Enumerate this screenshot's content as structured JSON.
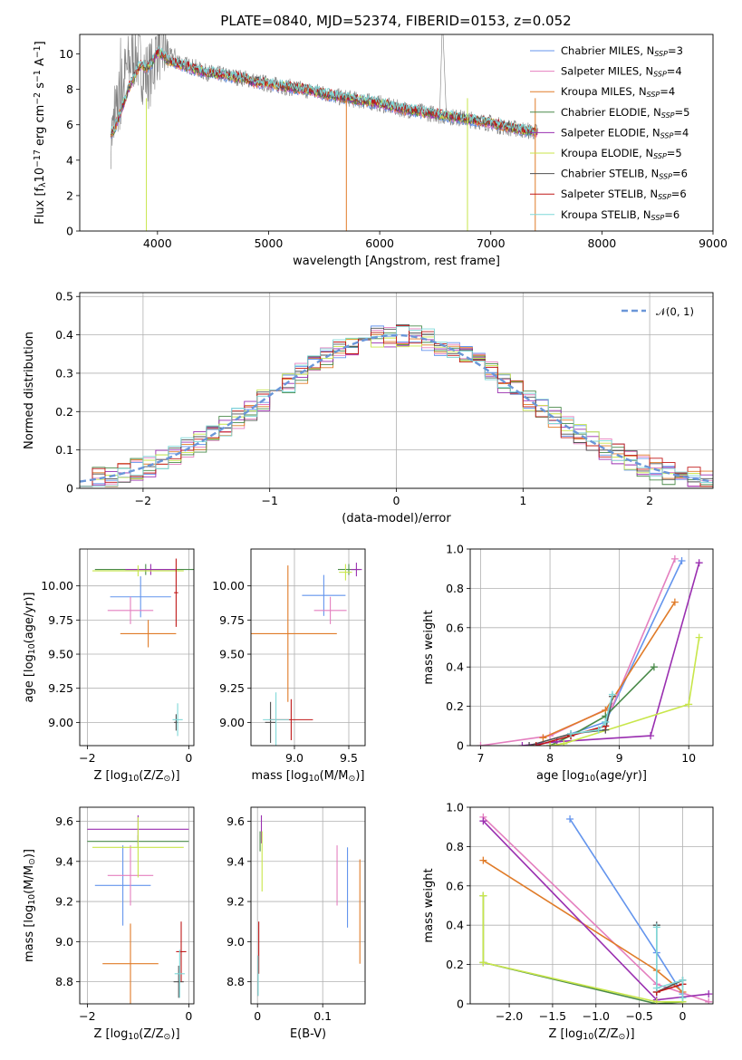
{
  "figure": {
    "title": "PLATE=0840, MJD=52374, FIBERID=0153, z=0.052"
  },
  "series": [
    {
      "name": "Chabrier MILES, N$_{SSP}$=3",
      "label_main": "Chabrier MILES, N",
      "label_sub": "SSP",
      "label_end": "=3",
      "color": "#6495ed"
    },
    {
      "name": "Salpeter MILES, N$_{SSP}$=4",
      "label_main": "Salpeter MILES, N",
      "label_sub": "SSP",
      "label_end": "=4",
      "color": "#e47fbf"
    },
    {
      "name": "Kroupa MILES, N$_{SSP}$=4",
      "label_main": "Kroupa MILES, N",
      "label_sub": "SSP",
      "label_end": "=4",
      "color": "#e07b28"
    },
    {
      "name": "Chabrier ELODIE, N$_{SSP}$=5",
      "label_main": "Chabrier ELODIE, N",
      "label_sub": "SSP",
      "label_end": "=5",
      "color": "#4a8a4a"
    },
    {
      "name": "Salpeter ELODIE, N$_{SSP}$=4",
      "label_main": "Salpeter ELODIE, N",
      "label_sub": "SSP",
      "label_end": "=4",
      "color": "#9a2fb0"
    },
    {
      "name": "Kroupa ELODIE, N$_{SSP}$=5",
      "label_main": "Kroupa ELODIE, N",
      "label_sub": "SSP",
      "label_end": "=5",
      "color": "#c8e64a"
    },
    {
      "name": "Chabrier STELIB, N$_{SSP}$=6",
      "label_main": "Chabrier STELIB, N",
      "label_sub": "SSP",
      "label_end": "=6",
      "color": "#505050"
    },
    {
      "name": "Salpeter STELIB, N$_{SSP}$=6",
      "label_main": "Salpeter STELIB, N",
      "label_sub": "SSP",
      "label_end": "=6",
      "color": "#c01818"
    },
    {
      "name": "Kroupa STELIB, N$_{SSP}$=6",
      "label_main": "Kroupa STELIB, N",
      "label_sub": "SSP",
      "label_end": "=6",
      "color": "#7fd8d8"
    }
  ],
  "chart_data": [
    {
      "id": "spectrum",
      "type": "line",
      "xlabel": "wavelength [Angstrom, rest frame]",
      "ylabel": "Flux [f$_\\lambda$10$^{-17}$ erg cm$^{-2}$ s$^{-1}$ A$^{-1}$]",
      "xlim": [
        3300,
        9000
      ],
      "ylim": [
        0,
        11.1
      ],
      "xticks": [
        4000,
        5000,
        6000,
        7000,
        8000,
        9000
      ],
      "yticks": [
        0,
        2,
        4,
        6,
        8,
        10
      ],
      "legend": "upper right",
      "data_color": "#808080",
      "data_x": [
        3600,
        3650,
        3700,
        3750,
        3800,
        3850,
        3900,
        3950,
        4000,
        4050,
        4100,
        4150,
        4200,
        4250,
        4300,
        4350,
        4400,
        4500,
        4600,
        4700,
        4800,
        4860,
        4900,
        5000,
        5100,
        5200,
        5300,
        5400,
        5500,
        5600,
        5700,
        5800,
        5900,
        6000,
        6100,
        6200,
        6300,
        6400,
        6500,
        6560,
        6600,
        6700,
        6800,
        6900,
        7000,
        7100,
        7200,
        7300,
        7400
      ],
      "data_y": [
        5.5,
        7.2,
        8.6,
        9.5,
        10.0,
        9.3,
        8.8,
        9.0,
        10.5,
        10.2,
        9.8,
        9.9,
        9.6,
        9.4,
        9.3,
        9.2,
        9.0,
        8.9,
        8.8,
        8.7,
        8.6,
        8.5,
        8.4,
        8.3,
        8.2,
        8.1,
        8.0,
        7.9,
        7.8,
        7.6,
        7.5,
        7.4,
        7.3,
        7.2,
        7.0,
        6.9,
        6.8,
        6.7,
        6.6,
        6.5,
        6.5,
        6.4,
        6.3,
        6.2,
        6.1,
        5.9,
        5.8,
        5.7,
        5.6
      ],
      "model_x": [
        3600,
        3650,
        3700,
        3750,
        3800,
        3850,
        3900,
        3950,
        4000,
        4050,
        4100,
        4200,
        4300,
        4400,
        4500,
        4600,
        4700,
        4800,
        4860,
        4900,
        5000,
        5200,
        5400,
        5600,
        5800,
        6000,
        6200,
        6400,
        6600,
        6800,
        7000,
        7200,
        7400
      ],
      "model_y": [
        5.6,
        6.4,
        7.3,
        8.2,
        8.9,
        9.4,
        9.2,
        9.5,
        10.1,
        9.9,
        9.6,
        9.4,
        9.2,
        9.0,
        8.9,
        8.8,
        8.7,
        8.6,
        8.4,
        8.4,
        8.3,
        8.1,
        7.9,
        7.6,
        7.4,
        7.2,
        6.9,
        6.7,
        6.5,
        6.3,
        6.1,
        5.8,
        5.6
      ]
    },
    {
      "id": "residuals",
      "type": "step",
      "xlabel": "(data-model)/error",
      "ylabel": "Normed distribution",
      "xlim": [
        -2.5,
        2.5
      ],
      "ylim": [
        0,
        0.51
      ],
      "xticks": [
        -2,
        -1,
        0,
        1,
        2
      ],
      "yticks": [
        0.0,
        0.1,
        0.2,
        0.3,
        0.4,
        0.5
      ],
      "legend": "upper right",
      "normal_label": "$\\mathcal{N}(0,1)$",
      "normal_label_display": "𝒩(0, 1)",
      "normal_color": "#6a96d8",
      "bin_width": 0.1,
      "bin_start": -2.5
    },
    {
      "id": "age-vs-Z",
      "type": "errorbar",
      "xlabel": "Z [log$_{10}$(Z/Z$_\\odot$)]",
      "ylabel": "age  [log$_{10}$(age/yr)]",
      "xlim": [
        -2.15,
        0.1
      ],
      "ylim": [
        8.83,
        10.27
      ],
      "xticks": [
        -2,
        0
      ],
      "yticks": [
        9.0,
        9.25,
        9.5,
        9.75,
        10.0
      ],
      "points": [
        {
          "s": 0,
          "x": -0.95,
          "xe": 0.6,
          "y": 9.92,
          "ye": 0.15
        },
        {
          "s": 1,
          "x": -1.15,
          "xe": 0.45,
          "y": 9.82,
          "ye": 0.1
        },
        {
          "s": 2,
          "x": -0.8,
          "xe": 0.55,
          "y": 9.65,
          "ye": 0.1
        },
        {
          "s": 3,
          "x": -0.85,
          "xe": 1.0,
          "y": 10.12,
          "ye": 0.04
        },
        {
          "s": 4,
          "x": -0.75,
          "xe": 0.5,
          "y": 10.12,
          "ye": 0.04
        },
        {
          "s": 5,
          "x": -1.0,
          "xe": 0.9,
          "y": 10.11,
          "ye": 0.04
        },
        {
          "s": 6,
          "x": -0.25,
          "xe": 0.04,
          "y": 9.0,
          "ye": 0.06
        },
        {
          "s": 7,
          "x": -0.25,
          "xe": 0.04,
          "y": 9.95,
          "ye": 0.25
        },
        {
          "s": 8,
          "x": -0.22,
          "xe": 0.1,
          "y": 9.02,
          "ye": 0.12
        }
      ]
    },
    {
      "id": "age-vs-mass",
      "type": "errorbar",
      "xlabel": "mass [log$_{10}$(M/M$_\\odot$)]",
      "ylabel": "",
      "xlim": [
        8.6,
        9.65
      ],
      "ylim": [
        8.83,
        10.27
      ],
      "xticks": [
        9.0,
        9.5
      ],
      "yticks": [
        9.0,
        9.25,
        9.5,
        9.75,
        10.0
      ],
      "points": [
        {
          "s": 0,
          "x": 9.27,
          "xe": 0.2,
          "y": 9.93,
          "ye": 0.15
        },
        {
          "s": 1,
          "x": 9.33,
          "xe": 0.15,
          "y": 9.82,
          "ye": 0.1
        },
        {
          "s": 2,
          "x": 8.94,
          "xe": 0.45,
          "y": 9.65,
          "ye": 0.5
        },
        {
          "s": 3,
          "x": 9.5,
          "xe": 0.1,
          "y": 10.12,
          "ye": 0.04
        },
        {
          "s": 4,
          "x": 9.57,
          "xe": 0.05,
          "y": 10.12,
          "ye": 0.05
        },
        {
          "s": 5,
          "x": 9.47,
          "xe": 0.06,
          "y": 10.1,
          "ye": 0.06
        },
        {
          "s": 6,
          "x": 8.78,
          "xe": 0.05,
          "y": 9.0,
          "ye": 0.15
        },
        {
          "s": 7,
          "x": 8.97,
          "xe": 0.2,
          "y": 9.02,
          "ye": 0.15
        },
        {
          "s": 8,
          "x": 8.83,
          "xe": 0.12,
          "y": 9.02,
          "ye": 0.2
        }
      ]
    },
    {
      "id": "massweight-vs-age",
      "type": "line",
      "xlabel": "age  [log$_{10}$(age/yr)]",
      "ylabel": "mass weight",
      "xlim": [
        6.85,
        10.35
      ],
      "ylim": [
        0,
        1.0
      ],
      "xticks": [
        7,
        8,
        9,
        10
      ],
      "yticks": [
        0.0,
        0.2,
        0.4,
        0.6,
        0.8,
        1.0
      ],
      "lines": [
        {
          "s": 0,
          "x": [
            8.3,
            8.8,
            9.9
          ],
          "y": [
            0.06,
            0.12,
            0.94
          ]
        },
        {
          "s": 1,
          "x": [
            7.0,
            8.0,
            8.9,
            9.8
          ],
          "y": [
            0.0,
            0.05,
            0.2,
            0.95
          ]
        },
        {
          "s": 2,
          "x": [
            7.9,
            8.8,
            9.8
          ],
          "y": [
            0.04,
            0.18,
            0.73
          ]
        },
        {
          "s": 3,
          "x": [
            8.0,
            8.3,
            8.8,
            9.5
          ],
          "y": [
            0.0,
            0.05,
            0.15,
            0.4
          ]
        },
        {
          "s": 4,
          "x": [
            7.6,
            8.1,
            9.45,
            10.15
          ],
          "y": [
            0.0,
            0.02,
            0.05,
            0.93
          ]
        },
        {
          "s": 5,
          "x": [
            8.0,
            8.2,
            10.0,
            10.15
          ],
          "y": [
            0.0,
            0.01,
            0.21,
            0.55
          ]
        },
        {
          "s": 6,
          "x": [
            7.7,
            8.3,
            8.8,
            8.9
          ],
          "y": [
            0.0,
            0.06,
            0.08,
            0.25
          ]
        },
        {
          "s": 7,
          "x": [
            7.8,
            8.3,
            8.8
          ],
          "y": [
            0.0,
            0.05,
            0.1
          ]
        },
        {
          "s": 8,
          "x": [
            8.3,
            8.7,
            8.8,
            8.9
          ],
          "y": [
            0.06,
            0.08,
            0.12,
            0.26
          ]
        }
      ]
    },
    {
      "id": "mass-vs-Z",
      "type": "errorbar",
      "xlabel": "Z [log$_{10}$(Z/Z$_\\odot$)]",
      "ylabel": "mass [log$_{10}$(M/M$_\\odot$)]",
      "xlim": [
        -2.15,
        0.1
      ],
      "ylim": [
        8.69,
        9.67
      ],
      "xticks": [
        -2,
        0
      ],
      "yticks": [
        8.8,
        9.0,
        9.2,
        9.4,
        9.6
      ],
      "points": [
        {
          "s": 0,
          "x": -1.3,
          "xe": 0.55,
          "y": 9.28,
          "ye": 0.2
        },
        {
          "s": 1,
          "x": -1.15,
          "xe": 0.45,
          "y": 9.33,
          "ye": 0.15
        },
        {
          "s": 2,
          "x": -1.15,
          "xe": 0.55,
          "y": 8.89,
          "ye": 0.2
        },
        {
          "s": 3,
          "x": -1.0,
          "xe": 1.0,
          "y": 9.5,
          "ye": 0.03
        },
        {
          "s": 4,
          "x": -1.0,
          "xe": 1.0,
          "y": 9.56,
          "ye": 0.07
        },
        {
          "s": 5,
          "x": -1.0,
          "xe": 0.9,
          "y": 9.47,
          "ye": 0.15
        },
        {
          "s": 6,
          "x": -0.2,
          "xe": 0.1,
          "y": 8.8,
          "ye": 0.08
        },
        {
          "s": 7,
          "x": -0.15,
          "xe": 0.1,
          "y": 8.95,
          "ye": 0.15
        },
        {
          "s": 8,
          "x": -0.18,
          "xe": 0.1,
          "y": 8.84,
          "ye": 0.12
        }
      ]
    },
    {
      "id": "mass-vs-EBV",
      "type": "errorbar",
      "xlabel": "E(B-V)",
      "ylabel": "",
      "xlim": [
        -0.01,
        0.165
      ],
      "ylim": [
        8.69,
        9.67
      ],
      "xticks": [
        0.0,
        0.1
      ],
      "yticks": [
        8.8,
        9.0,
        9.2,
        9.4,
        9.6
      ],
      "points": [
        {
          "s": 0,
          "x": 0.138,
          "xe": 0,
          "y": 9.27,
          "ye": 0.2
        },
        {
          "s": 1,
          "x": 0.122,
          "xe": 0,
          "y": 9.33,
          "ye": 0.15
        },
        {
          "s": 2,
          "x": 0.157,
          "xe": 0,
          "y": 9.15,
          "ye": 0.26
        },
        {
          "s": 3,
          "x": 0.004,
          "xe": 0,
          "y": 9.5,
          "ye": 0.05
        },
        {
          "s": 4,
          "x": 0.006,
          "xe": 0,
          "y": 9.56,
          "ye": 0.07
        },
        {
          "s": 5,
          "x": 0.007,
          "xe": 0,
          "y": 9.4,
          "ye": 0.15
        },
        {
          "s": 6,
          "x": 0.001,
          "xe": 0,
          "y": 8.83,
          "ye": 0.1
        },
        {
          "s": 7,
          "x": 0.002,
          "xe": 0,
          "y": 8.97,
          "ye": 0.13
        },
        {
          "s": 8,
          "x": 0.001,
          "xe": 0,
          "y": 8.83,
          "ye": 0.1
        }
      ]
    },
    {
      "id": "massweight-vs-Z",
      "type": "line",
      "xlabel": "Z [log$_{10}$(Z/Z$_\\odot$)]",
      "ylabel": "mass weight",
      "xlim": [
        -2.45,
        0.35
      ],
      "ylim": [
        0,
        1.0
      ],
      "xticks": [
        -2.0,
        -1.5,
        -1.0,
        -0.5,
        0.0
      ],
      "yticks": [
        0.0,
        0.2,
        0.4,
        0.6,
        0.8,
        1.0
      ],
      "lines": [
        {
          "s": 0,
          "x": [
            -1.3,
            -0.3,
            0.0
          ],
          "y": [
            0.94,
            0.26,
            0.05
          ]
        },
        {
          "s": 1,
          "x": [
            -2.3,
            -0.3,
            0.3
          ],
          "y": [
            0.95,
            0.1,
            0.01
          ]
        },
        {
          "s": 2,
          "x": [
            -2.3,
            -0.3,
            0.0
          ],
          "y": [
            0.73,
            0.17,
            0.06
          ]
        },
        {
          "s": 3,
          "x": [
            -2.3,
            -2.3,
            -0.3,
            0.0
          ],
          "y": [
            0.55,
            0.21,
            0.0,
            0.01
          ]
        },
        {
          "s": 4,
          "x": [
            -2.3,
            -0.3,
            0.3
          ],
          "y": [
            0.93,
            0.02,
            0.05
          ]
        },
        {
          "s": 5,
          "x": [
            -2.3,
            -2.3,
            -0.3,
            0.0
          ],
          "y": [
            0.55,
            0.21,
            0.01,
            0.01
          ]
        },
        {
          "s": 6,
          "x": [
            -0.3,
            -0.3,
            0.0
          ],
          "y": [
            0.4,
            0.06,
            0.12
          ]
        },
        {
          "s": 7,
          "x": [
            -0.3,
            0.0
          ],
          "y": [
            0.06,
            0.1
          ]
        },
        {
          "s": 8,
          "x": [
            -0.3,
            -0.3,
            0.0,
            0.0
          ],
          "y": [
            0.39,
            0.08,
            0.12,
            0.03
          ]
        }
      ]
    }
  ]
}
